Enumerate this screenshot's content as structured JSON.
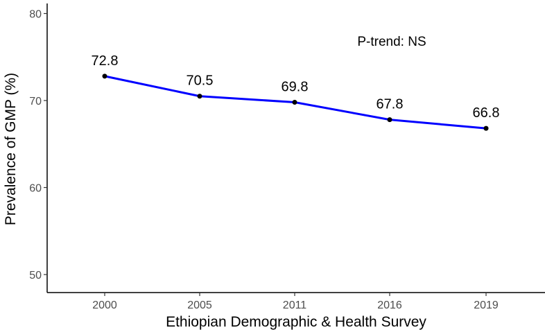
{
  "chart_data": {
    "type": "line",
    "categories": [
      "2000",
      "2005",
      "2011",
      "2016",
      "2019"
    ],
    "series": [
      {
        "values": [
          72.8,
          70.5,
          69.8,
          67.8,
          66.8
        ],
        "color": "#0000ff"
      }
    ],
    "data_labels": [
      "72.8",
      "70.5",
      "69.8",
      "67.8",
      "66.8"
    ],
    "xlabel": "Ethiopian Demographic & Health Survey",
    "ylabel": "Prevalence of GMP (%)",
    "ylim": [
      48,
      82
    ],
    "yticks": [
      50,
      60,
      70,
      80
    ],
    "ytick_labels": [
      "50",
      "60",
      "70",
      "80"
    ],
    "annotation": "P-trend: NS",
    "grid": false
  }
}
